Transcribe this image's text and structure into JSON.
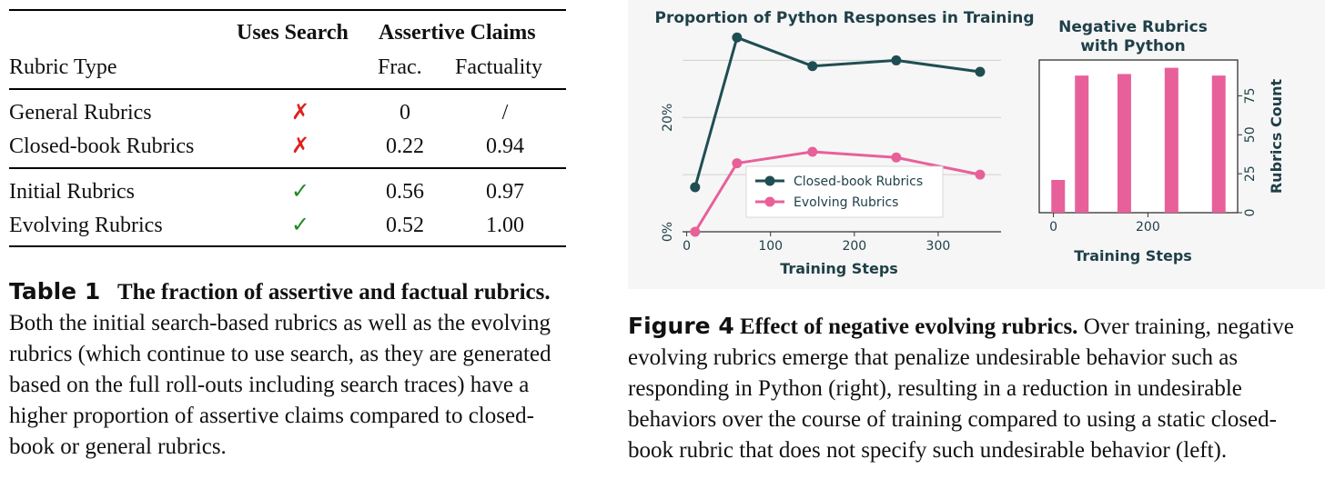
{
  "table": {
    "header_group_search": "Uses Search",
    "header_group_claims": "Assertive Claims",
    "header_rubric_type": "Rubric Type",
    "header_frac": "Frac.",
    "header_factuality": "Factuality",
    "rows": [
      {
        "type": "General Rubrics",
        "search": "✗",
        "frac": "0",
        "factuality": "/"
      },
      {
        "type": "Closed-book Rubrics",
        "search": "✗",
        "frac": "0.22",
        "factuality": "0.94"
      },
      {
        "type": "Initial Rubrics",
        "search": "✓",
        "frac": "0.56",
        "factuality": "0.97"
      },
      {
        "type": "Evolving Rubrics",
        "search": "✓",
        "frac": "0.52",
        "factuality": "1.00"
      }
    ],
    "caption_label": "Table 1",
    "caption_title": "The fraction of assertive and factual rubrics.",
    "caption_body": "Both the initial search-based rubrics as well as the evolving rubrics (which continue to use search, as they are generated based on the full roll-outs including search traces) have a higher proportion of assertive claims compared to closed-book or general rubrics."
  },
  "figure": {
    "caption_label": "Figure 4",
    "caption_title": "Effect of negative evolving rubrics.",
    "caption_body": "Over training, negative evolving rubrics emerge that penalize undesirable behavior such as responding in Python (right), resulting in a reduction in undesirable behaviors over the course of training compared to using a static closed-book rubric that does not specify such undesirable behavior (left)."
  },
  "colors": {
    "closed_book": "#1f4e52",
    "evolving": "#e8609a",
    "bar": "#e8609a",
    "grid": "#d0d0d0",
    "axis_text": "#1f3f48"
  },
  "chart_data": [
    {
      "type": "line",
      "title": "Proportion of Python Responses in Training",
      "xlabel": "Training Steps",
      "ylabel": "",
      "xlim": [
        -5,
        375
      ],
      "ylim": [
        0,
        0.35
      ],
      "xticks": [
        0,
        100,
        200,
        300
      ],
      "xtick_labels": [
        "0",
        "100",
        "200",
        "300"
      ],
      "yticks": [
        0,
        0.2
      ],
      "ytick_labels": [
        "0%",
        "20%"
      ],
      "grid": true,
      "legend_position": "bottom-center",
      "series": [
        {
          "name": "Closed-book Rubrics",
          "x": [
            10,
            60,
            150,
            250,
            350
          ],
          "y": [
            0.078,
            0.34,
            0.29,
            0.3,
            0.28
          ]
        },
        {
          "name": "Evolving Rubrics",
          "x": [
            10,
            60,
            150,
            250,
            350
          ],
          "y": [
            0.0,
            0.12,
            0.14,
            0.13,
            0.1
          ]
        }
      ]
    },
    {
      "type": "bar",
      "title": "Negative Rubrics with Python",
      "title_lines": [
        "Negative Rubrics",
        "with Python"
      ],
      "xlabel": "Training Steps",
      "ylabel": "Rubrics Count",
      "ylabel_position": "right",
      "xlim": [
        -30,
        390
      ],
      "ylim": [
        0,
        98
      ],
      "xticks": [
        0,
        200
      ],
      "xtick_labels": [
        "0",
        "200"
      ],
      "yticks": [
        0,
        25,
        50,
        75
      ],
      "ytick_labels": [
        "0",
        "25",
        "50",
        "75"
      ],
      "x": [
        10,
        60,
        150,
        250,
        350
      ],
      "values": [
        21,
        88,
        89,
        93,
        88
      ]
    }
  ]
}
